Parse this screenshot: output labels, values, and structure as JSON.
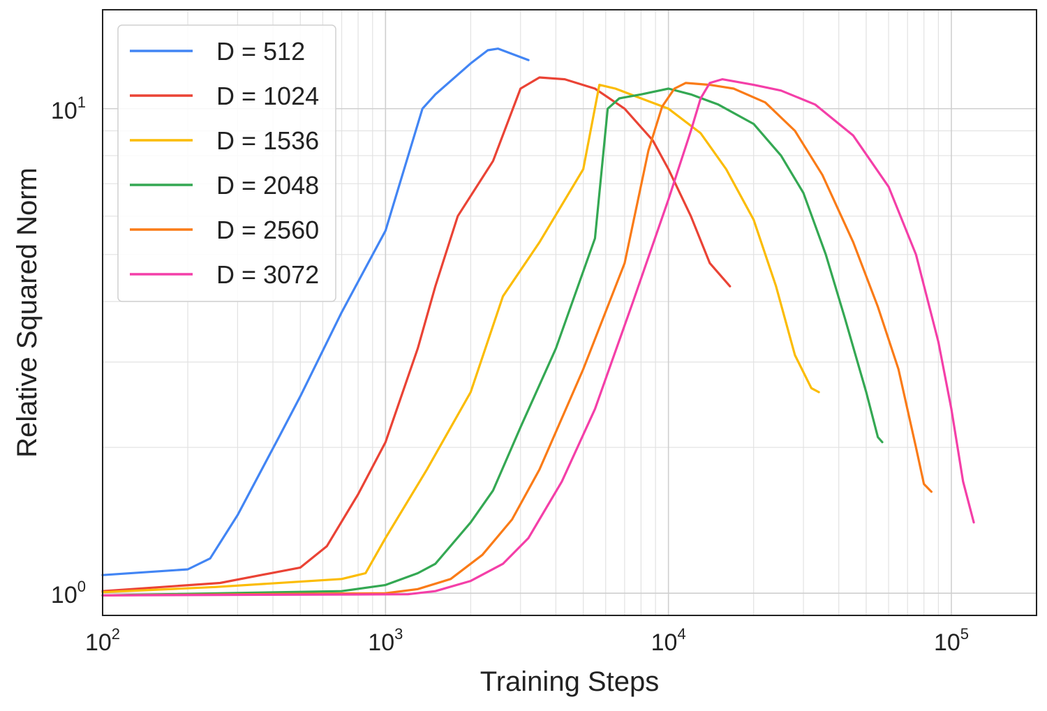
{
  "chart_data": {
    "type": "line",
    "title": "",
    "xlabel": "Training Steps",
    "ylabel": "Relative Squared Norm",
    "xscale": "log",
    "yscale": "log",
    "xlim": [
      100,
      200000
    ],
    "ylim": [
      0.9,
      16
    ],
    "grid": true,
    "legend_position": "top-left",
    "x_major_ticks": [
      {
        "value": 100,
        "base": "10",
        "exp": "2"
      },
      {
        "value": 1000,
        "base": "10",
        "exp": "3"
      },
      {
        "value": 10000,
        "base": "10",
        "exp": "4"
      },
      {
        "value": 100000,
        "base": "10",
        "exp": "5"
      }
    ],
    "y_major_ticks": [
      {
        "value": 1,
        "base": "10",
        "exp": "0"
      },
      {
        "value": 10,
        "base": "10",
        "exp": "1"
      }
    ],
    "series": [
      {
        "name": "D = 512",
        "color": "#4285F4",
        "points": [
          [
            100,
            1.09
          ],
          [
            200,
            1.12
          ],
          [
            240,
            1.18
          ],
          [
            300,
            1.45
          ],
          [
            420,
            2.1
          ],
          [
            500,
            2.55
          ],
          [
            700,
            3.8
          ],
          [
            1000,
            5.6
          ],
          [
            1350,
            10.0
          ],
          [
            1500,
            10.7
          ],
          [
            2000,
            12.4
          ],
          [
            2300,
            13.2
          ],
          [
            2500,
            13.3
          ],
          [
            3200,
            12.6
          ]
        ]
      },
      {
        "name": "D = 1024",
        "color": "#EA4335",
        "points": [
          [
            100,
            1.01
          ],
          [
            260,
            1.05
          ],
          [
            500,
            1.13
          ],
          [
            620,
            1.25
          ],
          [
            800,
            1.6
          ],
          [
            1000,
            2.05
          ],
          [
            1300,
            3.2
          ],
          [
            1500,
            4.3
          ],
          [
            1800,
            6.0
          ],
          [
            2400,
            7.8
          ],
          [
            3000,
            11.0
          ],
          [
            3500,
            11.6
          ],
          [
            4300,
            11.5
          ],
          [
            5500,
            11.0
          ],
          [
            7000,
            10.0
          ],
          [
            8800,
            8.6
          ],
          [
            10000,
            7.5
          ],
          [
            12000,
            6.0
          ],
          [
            14000,
            4.8
          ],
          [
            16500,
            4.3
          ]
        ]
      },
      {
        "name": "D = 1536",
        "color": "#FBBC04",
        "points": [
          [
            100,
            1.005
          ],
          [
            250,
            1.03
          ],
          [
            700,
            1.07
          ],
          [
            850,
            1.1
          ],
          [
            1000,
            1.3
          ],
          [
            1400,
            1.8
          ],
          [
            2000,
            2.6
          ],
          [
            2600,
            4.1
          ],
          [
            3500,
            5.3
          ],
          [
            5000,
            7.5
          ],
          [
            5700,
            11.2
          ],
          [
            6500,
            11.0
          ],
          [
            8000,
            10.5
          ],
          [
            10000,
            10.0
          ],
          [
            13000,
            8.9
          ],
          [
            16000,
            7.5
          ],
          [
            20000,
            5.9
          ],
          [
            24000,
            4.3
          ],
          [
            28000,
            3.1
          ],
          [
            32000,
            2.65
          ],
          [
            34000,
            2.6
          ]
        ]
      },
      {
        "name": "D = 2048",
        "color": "#34A853",
        "points": [
          [
            100,
            0.99
          ],
          [
            700,
            1.01
          ],
          [
            1000,
            1.04
          ],
          [
            1300,
            1.1
          ],
          [
            1500,
            1.15
          ],
          [
            2000,
            1.4
          ],
          [
            2400,
            1.63
          ],
          [
            3000,
            2.2
          ],
          [
            4000,
            3.2
          ],
          [
            5500,
            5.4
          ],
          [
            6100,
            10.0
          ],
          [
            6700,
            10.5
          ],
          [
            8000,
            10.7
          ],
          [
            10000,
            11.0
          ],
          [
            12000,
            10.7
          ],
          [
            15000,
            10.2
          ],
          [
            20000,
            9.3
          ],
          [
            25000,
            8.0
          ],
          [
            30000,
            6.7
          ],
          [
            36000,
            5.0
          ],
          [
            42000,
            3.7
          ],
          [
            50000,
            2.6
          ],
          [
            55000,
            2.1
          ],
          [
            57000,
            2.05
          ]
        ]
      },
      {
        "name": "D = 2560",
        "color": "#FA7B17",
        "points": [
          [
            100,
            0.99
          ],
          [
            1000,
            1.0
          ],
          [
            1300,
            1.02
          ],
          [
            1700,
            1.07
          ],
          [
            2200,
            1.2
          ],
          [
            2800,
            1.42
          ],
          [
            3500,
            1.8
          ],
          [
            5000,
            2.9
          ],
          [
            7000,
            4.8
          ],
          [
            8500,
            8.2
          ],
          [
            9500,
            10.1
          ],
          [
            10500,
            11.0
          ],
          [
            11500,
            11.3
          ],
          [
            14000,
            11.2
          ],
          [
            17000,
            11.0
          ],
          [
            22000,
            10.3
          ],
          [
            28000,
            9.0
          ],
          [
            35000,
            7.3
          ],
          [
            45000,
            5.3
          ],
          [
            55000,
            3.9
          ],
          [
            65000,
            2.9
          ],
          [
            75000,
            2.0
          ],
          [
            80000,
            1.68
          ],
          [
            85000,
            1.62
          ]
        ]
      },
      {
        "name": "D = 3072",
        "color": "#F43FA8",
        "points": [
          [
            100,
            0.99
          ],
          [
            1200,
            0.995
          ],
          [
            1500,
            1.01
          ],
          [
            2000,
            1.06
          ],
          [
            2600,
            1.15
          ],
          [
            3200,
            1.3
          ],
          [
            4200,
            1.7
          ],
          [
            5500,
            2.4
          ],
          [
            7500,
            4.0
          ],
          [
            10000,
            6.5
          ],
          [
            12000,
            9.0
          ],
          [
            13000,
            10.5
          ],
          [
            14000,
            11.3
          ],
          [
            15500,
            11.5
          ],
          [
            20000,
            11.2
          ],
          [
            25000,
            10.9
          ],
          [
            33000,
            10.2
          ],
          [
            45000,
            8.8
          ],
          [
            60000,
            6.9
          ],
          [
            75000,
            5.0
          ],
          [
            90000,
            3.3
          ],
          [
            100000,
            2.4
          ],
          [
            110000,
            1.7
          ],
          [
            120000,
            1.4
          ]
        ]
      }
    ]
  }
}
